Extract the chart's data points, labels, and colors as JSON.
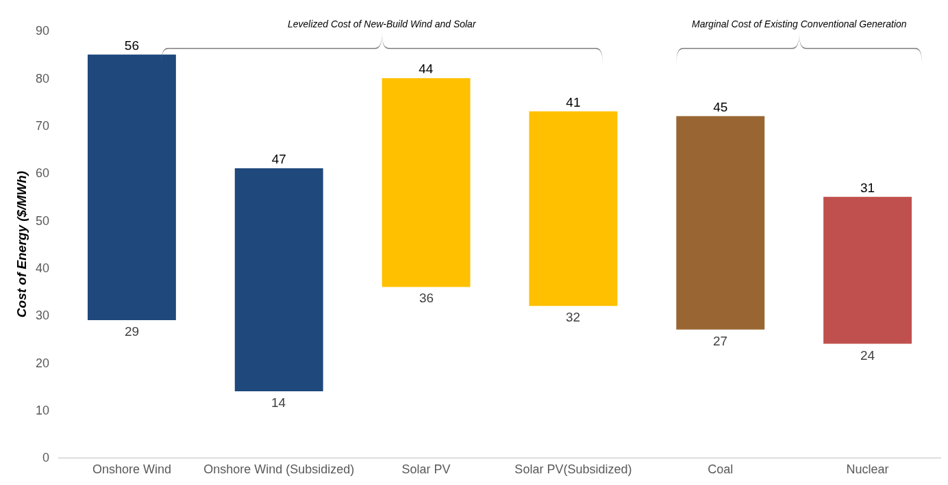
{
  "chart_data": {
    "type": "bar",
    "ylabel": "Cost of Energy ($/MWh)",
    "categories": [
      "Onshore Wind",
      "Onshore Wind (Subsidized)",
      "Solar PV",
      "Solar PV(Subsidized)",
      "Coal",
      "Nuclear"
    ],
    "base": [
      29,
      14,
      36,
      32,
      27,
      24
    ],
    "values": [
      56,
      47,
      44,
      41,
      45,
      31
    ],
    "colors": [
      "#1f497d",
      "#1f497d",
      "#ffc000",
      "#ffc000",
      "#996633",
      "#c0504d"
    ],
    "data_labels": true,
    "ylim": [
      0,
      90
    ],
    "yticks": [
      0,
      10,
      20,
      30,
      40,
      50,
      60,
      70,
      80,
      90
    ],
    "grid": false,
    "annotations": [
      "Levelized Cost of New-Build Wind and Solar",
      "Marginal Cost of Existing Conventional Generation",
      {
        "text": "29",
        "x": "Onshore Wind",
        "y": 29
      },
      {
        "text": "14",
        "x": "Onshore Wind (Subsidized)",
        "y": 14
      },
      {
        "text": "36",
        "x": "Solar PV",
        "y": 36
      },
      {
        "text": "32",
        "x": "Solar PV(Subsidized)",
        "y": 32
      },
      {
        "text": "27",
        "x": "Coal",
        "y": 27
      },
      {
        "text": "24",
        "x": "Nuclear",
        "y": 24
      }
    ]
  }
}
